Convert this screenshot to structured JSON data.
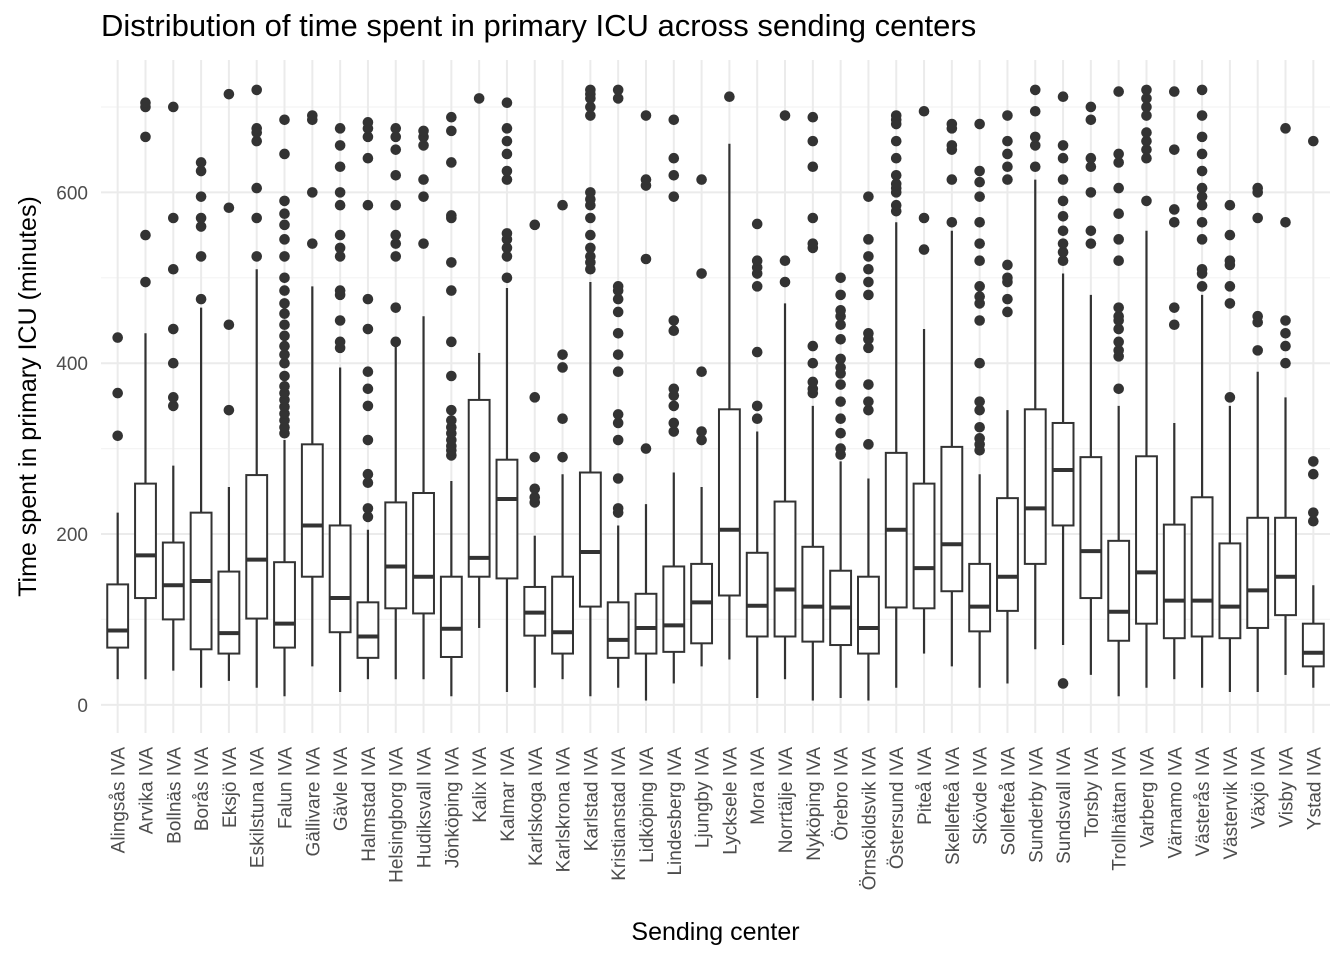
{
  "chart_data": {
    "type": "box",
    "title": "Distribution of time spent in primary ICU across sending centers",
    "xlabel": "Sending center",
    "ylabel": "Time spent in primary ICU (minutes)",
    "ylim": [
      -33,
      755
    ],
    "yticks": [
      0,
      200,
      400,
      600
    ],
    "grid": true,
    "boxes": [
      {
        "name": "Alingsås IVA",
        "min": 30,
        "q1": 67,
        "median": 87,
        "q3": 141,
        "max": 225,
        "outliers": [
          315,
          365,
          430
        ]
      },
      {
        "name": "Arvika IVA",
        "min": 30,
        "q1": 125,
        "median": 175,
        "q3": 259,
        "max": 435,
        "outliers": [
          495,
          550,
          665,
          700,
          705
        ]
      },
      {
        "name": "Bollnäs IVA",
        "min": 40,
        "q1": 100,
        "median": 140,
        "q3": 190,
        "max": 280,
        "outliers": [
          350,
          360,
          400,
          440,
          510,
          570,
          700
        ]
      },
      {
        "name": "Borås IVA",
        "min": 20,
        "q1": 65,
        "median": 145,
        "q3": 225,
        "max": 465,
        "outliers": [
          475,
          525,
          560,
          570,
          595,
          625,
          635
        ]
      },
      {
        "name": "Eksjö IVA",
        "min": 28,
        "q1": 60,
        "median": 84,
        "q3": 156,
        "max": 255,
        "outliers": [
          345,
          445,
          582,
          715
        ]
      },
      {
        "name": "Eskilstuna IVA",
        "min": 20,
        "q1": 101,
        "median": 170,
        "q3": 269,
        "max": 510,
        "outliers": [
          525,
          570,
          605,
          660,
          670,
          675,
          720
        ]
      },
      {
        "name": "Falun IVA",
        "min": 10,
        "q1": 67,
        "median": 95,
        "q3": 167,
        "max": 310,
        "outliers": [
          318,
          325,
          333,
          341,
          349,
          357,
          365,
          373,
          385,
          400,
          410,
          420,
          432,
          445,
          458,
          470,
          485,
          500,
          525,
          545,
          562,
          575,
          590,
          645,
          685
        ]
      },
      {
        "name": "Gällivare IVA",
        "min": 45,
        "q1": 150,
        "median": 210,
        "q3": 305,
        "max": 490,
        "outliers": [
          540,
          600,
          685,
          690
        ]
      },
      {
        "name": "Gävle IVA",
        "min": 15,
        "q1": 85,
        "median": 125,
        "q3": 210,
        "max": 395,
        "outliers": [
          418,
          425,
          450,
          480,
          485,
          525,
          535,
          550,
          585,
          600,
          630,
          655,
          675
        ]
      },
      {
        "name": "Halmstad IVA",
        "min": 30,
        "q1": 55,
        "median": 80,
        "q3": 120,
        "max": 205,
        "outliers": [
          220,
          230,
          260,
          270,
          310,
          350,
          370,
          390,
          440,
          475,
          585,
          640,
          665,
          675,
          682
        ]
      },
      {
        "name": "Helsingborg IVA",
        "min": 30,
        "q1": 113,
        "median": 162,
        "q3": 237,
        "max": 420,
        "outliers": [
          425,
          465,
          525,
          540,
          550,
          585,
          620,
          650,
          665,
          675
        ]
      },
      {
        "name": "Hudiksvall IVA",
        "min": 30,
        "q1": 107,
        "median": 150,
        "q3": 248,
        "max": 455,
        "outliers": [
          540,
          595,
          615,
          655,
          665,
          672
        ]
      },
      {
        "name": "Jönköping IVA",
        "min": 10,
        "q1": 56,
        "median": 89,
        "q3": 150,
        "max": 262,
        "outliers": [
          292,
          298,
          303,
          310,
          318,
          325,
          333,
          345,
          385,
          425,
          485,
          518,
          570,
          573,
          635,
          672,
          688
        ]
      },
      {
        "name": "Kalix IVA",
        "min": 90,
        "q1": 150,
        "median": 172,
        "q3": 357,
        "max": 412,
        "outliers": [
          710
        ]
      },
      {
        "name": "Kalmar IVA",
        "min": 15,
        "q1": 148,
        "median": 241,
        "q3": 287,
        "max": 488,
        "outliers": [
          500,
          525,
          535,
          545,
          552,
          615,
          625,
          645,
          660,
          675,
          705
        ]
      },
      {
        "name": "Karlskoga IVA",
        "min": 20,
        "q1": 81,
        "median": 108,
        "q3": 138,
        "max": 198,
        "outliers": [
          237,
          243,
          253,
          290,
          360,
          562
        ]
      },
      {
        "name": "Karlskrona IVA",
        "min": 30,
        "q1": 60,
        "median": 85,
        "q3": 150,
        "max": 270,
        "outliers": [
          290,
          335,
          395,
          410,
          585
        ]
      },
      {
        "name": "Karlstad IVA",
        "min": 10,
        "q1": 115,
        "median": 179,
        "q3": 272,
        "max": 495,
        "outliers": [
          510,
          518,
          525,
          535,
          550,
          570,
          585,
          592,
          600,
          690,
          700,
          710,
          715,
          720
        ]
      },
      {
        "name": "Kristianstad IVA",
        "min": 20,
        "q1": 55,
        "median": 76,
        "q3": 120,
        "max": 210,
        "outliers": [
          225,
          230,
          265,
          310,
          330,
          340,
          390,
          410,
          435,
          460,
          475,
          485,
          490,
          710,
          720
        ]
      },
      {
        "name": "Lidköping IVA",
        "min": 5,
        "q1": 60,
        "median": 90,
        "q3": 130,
        "max": 235,
        "outliers": [
          300,
          522,
          608,
          615,
          690
        ]
      },
      {
        "name": "Lindesberg IVA",
        "min": 25,
        "q1": 62,
        "median": 93,
        "q3": 162,
        "max": 272,
        "outliers": [
          320,
          330,
          350,
          362,
          370,
          438,
          450,
          595,
          620,
          640,
          685
        ]
      },
      {
        "name": "Ljungby IVA",
        "min": 45,
        "q1": 72,
        "median": 120,
        "q3": 165,
        "max": 255,
        "outliers": [
          310,
          320,
          390,
          505,
          615
        ]
      },
      {
        "name": "Lycksele IVA",
        "min": 53,
        "q1": 128,
        "median": 205,
        "q3": 346,
        "max": 657,
        "outliers": [
          712
        ]
      },
      {
        "name": "Mora IVA",
        "min": 8,
        "q1": 80,
        "median": 116,
        "q3": 178,
        "max": 320,
        "outliers": [
          335,
          350,
          413,
          490,
          505,
          512,
          520,
          563
        ]
      },
      {
        "name": "Norrtälje IVA",
        "min": 30,
        "q1": 80,
        "median": 135,
        "q3": 238,
        "max": 470,
        "outliers": [
          495,
          520,
          690
        ]
      },
      {
        "name": "Nyköping IVA",
        "min": 5,
        "q1": 74,
        "median": 115,
        "q3": 185,
        "max": 350,
        "outliers": [
          365,
          370,
          378,
          400,
          420,
          535,
          540,
          570,
          630,
          660,
          688
        ]
      },
      {
        "name": "Örebro IVA",
        "min": 8,
        "q1": 70,
        "median": 114,
        "q3": 157,
        "max": 285,
        "outliers": [
          293,
          300,
          318,
          335,
          355,
          375,
          388,
          395,
          405,
          428,
          445,
          455,
          462,
          480,
          500
        ]
      },
      {
        "name": "Örnsköldsvik IVA",
        "min": 5,
        "q1": 60,
        "median": 90,
        "q3": 150,
        "max": 265,
        "outliers": [
          305,
          345,
          355,
          375,
          418,
          428,
          435,
          480,
          495,
          510,
          525,
          545,
          595
        ]
      },
      {
        "name": "Östersund IVA",
        "min": 20,
        "q1": 114,
        "median": 205,
        "q3": 295,
        "max": 565,
        "outliers": [
          578,
          585,
          600,
          605,
          610,
          620,
          640,
          660,
          680,
          685,
          690
        ]
      },
      {
        "name": "Piteå IVA",
        "min": 60,
        "q1": 113,
        "median": 160,
        "q3": 259,
        "max": 440,
        "outliers": [
          533,
          570,
          695
        ]
      },
      {
        "name": "Skellefteå IVA",
        "min": 45,
        "q1": 133,
        "median": 188,
        "q3": 302,
        "max": 555,
        "outliers": [
          565,
          615,
          650,
          655,
          675,
          680
        ]
      },
      {
        "name": "Skövde IVA",
        "min": 20,
        "q1": 86,
        "median": 115,
        "q3": 165,
        "max": 270,
        "outliers": [
          298,
          305,
          312,
          325,
          345,
          355,
          400,
          450,
          470,
          478,
          490,
          520,
          540,
          565,
          595,
          612,
          625,
          680
        ]
      },
      {
        "name": "Sollefteå IVA",
        "min": 25,
        "q1": 110,
        "median": 150,
        "q3": 242,
        "max": 345,
        "outliers": [
          460,
          475,
          495,
          500,
          515,
          615,
          630,
          645,
          660,
          690
        ]
      },
      {
        "name": "Sunderby IVA",
        "min": 65,
        "q1": 165,
        "median": 230,
        "q3": 346,
        "max": 615,
        "outliers": [
          630,
          655,
          665,
          695,
          720
        ]
      },
      {
        "name": "Sundsvall IVA",
        "min": 70,
        "q1": 210,
        "median": 275,
        "q3": 330,
        "max": 505,
        "outliers": [
          25,
          520,
          530,
          540,
          555,
          572,
          590,
          615,
          640,
          655,
          712
        ]
      },
      {
        "name": "Torsby IVA",
        "min": 35,
        "q1": 125,
        "median": 180,
        "q3": 290,
        "max": 480,
        "outliers": [
          540,
          555,
          600,
          630,
          640,
          685,
          700
        ]
      },
      {
        "name": "Trollhättan IVA",
        "min": 10,
        "q1": 75,
        "median": 109,
        "q3": 192,
        "max": 350,
        "outliers": [
          370,
          408,
          415,
          425,
          440,
          450,
          455,
          465,
          520,
          545,
          575,
          605,
          635,
          645,
          718
        ]
      },
      {
        "name": "Varberg IVA",
        "min": 20,
        "q1": 95,
        "median": 155,
        "q3": 291,
        "max": 555,
        "outliers": [
          590,
          640,
          650,
          660,
          670,
          690,
          700,
          710,
          720
        ]
      },
      {
        "name": "Värnamo IVA",
        "min": 30,
        "q1": 78,
        "median": 122,
        "q3": 211,
        "max": 330,
        "outliers": [
          445,
          465,
          565,
          580,
          650,
          718
        ]
      },
      {
        "name": "Västerås IVA",
        "min": 20,
        "q1": 80,
        "median": 122,
        "q3": 243,
        "max": 480,
        "outliers": [
          490,
          505,
          510,
          545,
          565,
          585,
          595,
          605,
          625,
          645,
          665,
          690,
          720
        ]
      },
      {
        "name": "Västervik IVA",
        "min": 15,
        "q1": 78,
        "median": 115,
        "q3": 189,
        "max": 350,
        "outliers": [
          360,
          470,
          490,
          515,
          520,
          550,
          585
        ]
      },
      {
        "name": "Växjö IVA",
        "min": 15,
        "q1": 90,
        "median": 134,
        "q3": 219,
        "max": 390,
        "outliers": [
          415,
          448,
          455,
          570,
          600,
          605
        ]
      },
      {
        "name": "Visby IVA",
        "min": 35,
        "q1": 105,
        "median": 150,
        "q3": 219,
        "max": 360,
        "outliers": [
          400,
          420,
          435,
          450,
          565,
          675
        ]
      },
      {
        "name": "Ystad IVA",
        "min": 20,
        "q1": 45,
        "median": 61,
        "q3": 95,
        "max": 140,
        "outliers": [
          215,
          225,
          270,
          285,
          660
        ]
      }
    ]
  }
}
